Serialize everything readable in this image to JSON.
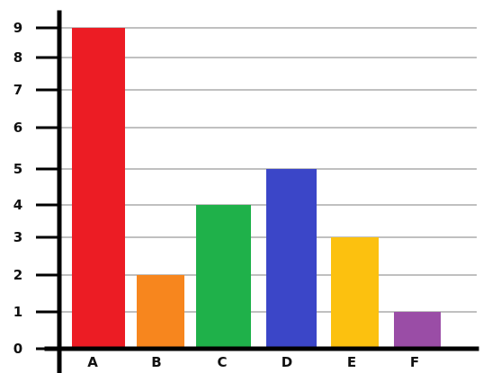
{
  "chart_data": {
    "type": "bar",
    "title": "",
    "xlabel": "",
    "ylabel": "",
    "categories": [
      "A",
      "B",
      "C",
      "D",
      "E",
      "F"
    ],
    "values": [
      9,
      2,
      4,
      5,
      3,
      1
    ],
    "colors": [
      "#ec1c24",
      "#f7861e",
      "#1fb14a",
      "#3b46c8",
      "#fcc10f",
      "#9a4da6"
    ],
    "ylim": [
      0,
      9
    ],
    "yticks": [
      0,
      1,
      2,
      3,
      4,
      5,
      6,
      7,
      8,
      9
    ],
    "grid": true,
    "legend": "none"
  }
}
